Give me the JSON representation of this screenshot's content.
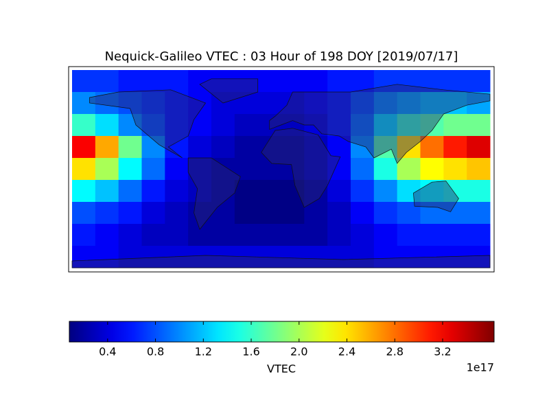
{
  "chart_data": {
    "type": "heatmap",
    "title": "Nequick-Galileo VTEC : 03 Hour of 198 DOY [2019/07/17]",
    "x": [
      -170,
      -150,
      -130,
      -110,
      -90,
      -70,
      -50,
      -30,
      -10,
      10,
      30,
      50,
      70,
      90,
      110,
      130,
      150,
      170
    ],
    "y": [
      80,
      60,
      40,
      20,
      0,
      -20,
      -40,
      -60,
      -80
    ],
    "xlim": [
      -180,
      180
    ],
    "ylim": [
      -90,
      90
    ],
    "values": [
      [
        0.7,
        0.7,
        0.6,
        0.6,
        0.6,
        0.5,
        0.5,
        0.5,
        0.5,
        0.5,
        0.5,
        0.6,
        0.6,
        0.7,
        0.7,
        0.7,
        0.7,
        0.7
      ],
      [
        1.0,
        0.9,
        0.8,
        0.7,
        0.6,
        0.5,
        0.4,
        0.4,
        0.4,
        0.4,
        0.5,
        0.6,
        0.8,
        1.0,
        1.1,
        1.2,
        1.2,
        1.1
      ],
      [
        1.6,
        1.3,
        1.0,
        0.8,
        0.6,
        0.5,
        0.4,
        0.3,
        0.3,
        0.3,
        0.4,
        0.6,
        0.9,
        1.3,
        1.6,
        1.7,
        1.8,
        1.8
      ],
      [
        3.2,
        2.6,
        1.8,
        1.0,
        0.6,
        0.4,
        0.3,
        0.2,
        0.2,
        0.2,
        0.3,
        0.5,
        1.0,
        1.7,
        2.4,
        2.8,
        3.1,
        3.3
      ],
      [
        2.4,
        2.0,
        1.4,
        0.9,
        0.5,
        0.3,
        0.2,
        0.2,
        0.2,
        0.2,
        0.3,
        0.5,
        0.9,
        1.5,
        2.0,
        2.3,
        2.4,
        2.5
      ],
      [
        1.4,
        1.2,
        0.9,
        0.6,
        0.4,
        0.3,
        0.2,
        0.1,
        0.1,
        0.1,
        0.2,
        0.4,
        0.7,
        1.0,
        1.3,
        1.4,
        1.5,
        1.5
      ],
      [
        0.8,
        0.7,
        0.6,
        0.4,
        0.3,
        0.2,
        0.2,
        0.1,
        0.1,
        0.1,
        0.2,
        0.3,
        0.5,
        0.7,
        0.8,
        0.9,
        0.9,
        0.9
      ],
      [
        0.6,
        0.5,
        0.4,
        0.3,
        0.3,
        0.2,
        0.2,
        0.2,
        0.2,
        0.2,
        0.2,
        0.3,
        0.4,
        0.5,
        0.6,
        0.6,
        0.6,
        0.6
      ],
      [
        0.5,
        0.5,
        0.4,
        0.4,
        0.4,
        0.4,
        0.4,
        0.4,
        0.4,
        0.4,
        0.4,
        0.4,
        0.4,
        0.5,
        0.5,
        0.5,
        0.5,
        0.5
      ]
    ],
    "colormap": "jet",
    "clim": [
      0.08,
      3.63
    ],
    "colorbar": {
      "label": "VTEC",
      "offset_label": "1e17",
      "ticks": [
        0.4,
        0.8,
        1.2,
        1.6,
        {
          "value": 2,
          "label": "2.0"
        },
        2.4,
        2.8,
        3.2
      ]
    }
  }
}
